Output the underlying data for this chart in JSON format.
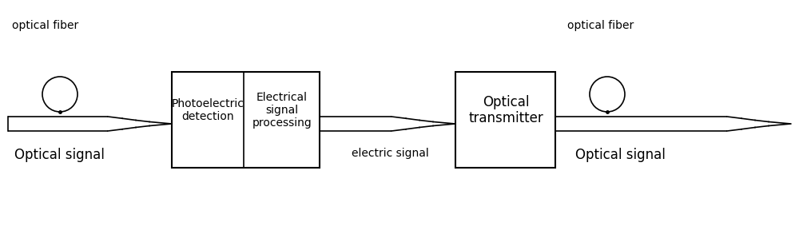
{
  "bg_color": "#ffffff",
  "fig_width": 10.0,
  "fig_height": 3.03,
  "dpi": 100,
  "left_fiber_label": "optical fiber",
  "left_signal_label": "Optical signal",
  "mid_signal_label": "electric signal",
  "right_fiber_label": "optical fiber",
  "right_signal_label": "Optical signal",
  "box1_left_text": "Photoelectric\ndetection",
  "box1_right_text": "Electrical\nsignal\nprocessing",
  "box2_text": "Optical\ntransmitter",
  "text_fontsize": 10,
  "signal_fontsize": 12
}
